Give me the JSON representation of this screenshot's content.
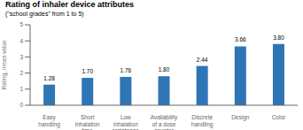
{
  "chart_data": {
    "type": "bar",
    "title": "Rating of inhaler device attributes",
    "subtitle": "(\"school grades\" from 1 to 5)",
    "ylabel": "Rating, mean value",
    "categories": [
      "Easy\nhandling",
      "Short\ninhalation\ntime",
      "Low\ninhalation\nresistance",
      "Availability\nof a dose\ncounter",
      "Discrete\nhandling",
      "Design",
      "Color"
    ],
    "values": [
      1.28,
      1.7,
      1.76,
      1.8,
      2.44,
      3.66,
      3.8
    ],
    "value_labels": [
      "1.28",
      "1.70",
      "1.76",
      "1.80",
      "2.44",
      "3.66",
      "3.80"
    ],
    "color": "#2E75B6",
    "ylim": [
      0,
      5
    ],
    "yticks": [
      0,
      1,
      2,
      3,
      4,
      5
    ],
    "data_labels": true,
    "grid": false
  }
}
